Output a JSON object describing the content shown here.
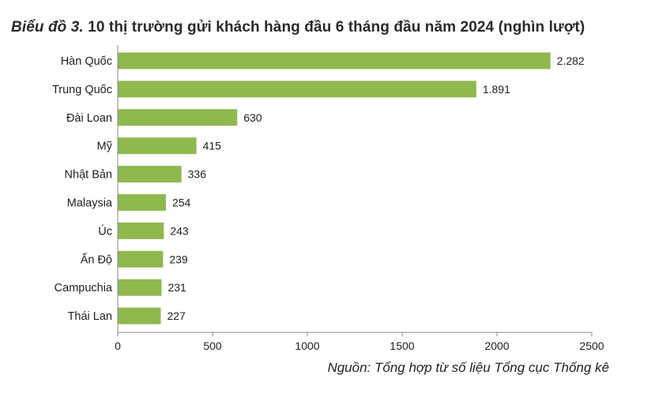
{
  "title_lead": "Biểu đồ 3.",
  "title_rest": " 10 thị trường gửi khách hàng đầu 6 tháng đầu năm 2024 (nghìn lượt)",
  "source": "Nguồn: Tổng hợp từ số liệu Tổng cục Thống kê",
  "colors": {
    "bar": "#8fb84f",
    "axis": "#8a8a8a"
  },
  "chart_data": {
    "type": "bar",
    "orientation": "horizontal",
    "title": "Biểu đồ 3. 10 thị trường gửi khách hàng đầu 6 tháng đầu năm 2024 (nghìn lượt)",
    "categories": [
      "Hàn Quốc",
      "Trung Quốc",
      "Đài Loan",
      "Mỹ",
      "Nhật Bản",
      "Malaysia",
      "Úc",
      "Ấn Độ",
      "Campuchia",
      "Thái Lan"
    ],
    "values": [
      2282,
      1891,
      630,
      415,
      336,
      254,
      243,
      239,
      231,
      227
    ],
    "value_labels": [
      "2.282",
      "1.891",
      "630",
      "415",
      "336",
      "254",
      "243",
      "239",
      "231",
      "227"
    ],
    "xlim": [
      0,
      2500
    ],
    "x_ticks": [
      0,
      500,
      1000,
      1500,
      2000,
      2500
    ],
    "x_tick_labels": [
      "0",
      "500",
      "1000",
      "1500",
      "2000",
      "2500"
    ],
    "grid": false,
    "legend": "none"
  }
}
